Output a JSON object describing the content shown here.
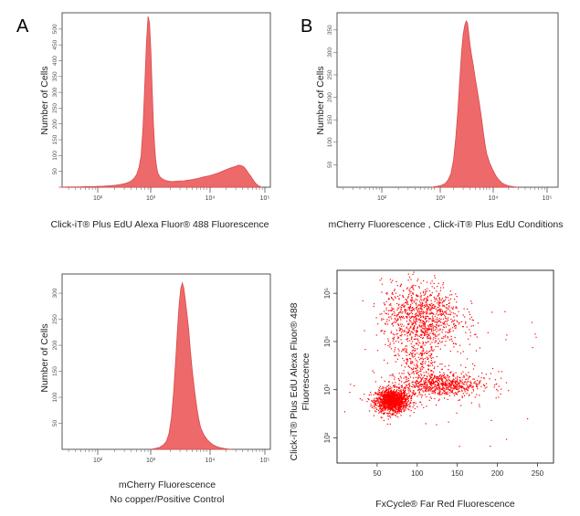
{
  "panel_labels": [
    "A",
    "B"
  ],
  "chart_data": [
    {
      "type": "area",
      "panel": "A",
      "xlabel": "Click-iT® Plus  EdU Alexa Fluor® 488 Fluorescence",
      "ylabel": "Number of Cells",
      "x_scale": "log",
      "xlim": [
        10,
        100000
      ],
      "x_ticks": [
        "10²",
        "10³",
        "10⁴",
        "10⁵"
      ],
      "y_ticks": [
        "50",
        "100",
        "150",
        "200",
        "250",
        "300",
        "350",
        "400",
        "450",
        "500"
      ],
      "ylim": [
        0,
        540
      ],
      "color": "#ee6a6a",
      "x": [
        20,
        30,
        40,
        50,
        60,
        70,
        80,
        90,
        100,
        120,
        140,
        170,
        200,
        250,
        300,
        350,
        400,
        450,
        500,
        550,
        600,
        650,
        700,
        750,
        800,
        850,
        900,
        950,
        1000,
        1050,
        1100,
        1150,
        1200,
        1300,
        1400,
        1500,
        1600,
        1800,
        2000,
        2300,
        2600,
        3000,
        3500,
        4000,
        5000,
        6000,
        7000,
        8000,
        10000,
        12000,
        15000,
        18000,
        22000,
        26000,
        30000,
        34000,
        38000,
        42000,
        46000,
        50000,
        55000,
        60000,
        65000,
        70000,
        75000,
        80000,
        85000,
        90000
      ],
      "y": [
        0,
        1,
        1,
        1,
        2,
        2,
        2,
        2,
        3,
        3,
        4,
        5,
        6,
        8,
        11,
        15,
        20,
        28,
        40,
        62,
        100,
        190,
        330,
        460,
        540,
        520,
        430,
        310,
        200,
        130,
        85,
        60,
        45,
        33,
        28,
        25,
        22,
        20,
        18,
        18,
        19,
        20,
        20,
        22,
        24,
        27,
        30,
        33,
        36,
        40,
        46,
        52,
        58,
        63,
        66,
        70,
        68,
        64,
        56,
        46,
        36,
        26,
        17,
        10,
        6,
        3,
        1,
        0
      ]
    },
    {
      "type": "area",
      "panel": "B",
      "xlabel": "mCherry Fluorescence , Click-iT® Plus  EdU Conditions",
      "ylabel": "Number of Cells",
      "x_scale": "log",
      "xlim": [
        10,
        100000
      ],
      "x_ticks": [
        "10²",
        "10³",
        "10⁴",
        "10⁵"
      ],
      "y_ticks": [
        "50",
        "100",
        "150",
        "200",
        "250",
        "300",
        "350"
      ],
      "ylim": [
        0,
        380
      ],
      "color": "#ee6a6a",
      "x": [
        800,
        1000,
        1200,
        1400,
        1600,
        1800,
        2000,
        2200,
        2400,
        2600,
        2800,
        3000,
        3200,
        3400,
        3600,
        3800,
        4000,
        4300,
        4600,
        5000,
        5500,
        6000,
        6500,
        7000,
        7500,
        8000,
        9000,
        10000,
        11000,
        12000,
        13000,
        14000,
        15000,
        17000,
        20000,
        25000,
        30000
      ],
      "y": [
        0,
        2,
        4,
        8,
        16,
        30,
        60,
        110,
        170,
        240,
        300,
        340,
        360,
        370,
        365,
        340,
        315,
        290,
        270,
        240,
        210,
        180,
        150,
        120,
        95,
        75,
        55,
        42,
        32,
        24,
        18,
        14,
        10,
        6,
        3,
        1,
        0
      ]
    },
    {
      "type": "area",
      "panel": "bottom-left",
      "xlabel": "mCherry Fluorescence",
      "xlabel_line2": "No copper/Positive Control",
      "ylabel": "Number of Cells",
      "x_scale": "log",
      "xlim": [
        10,
        100000
      ],
      "x_ticks": [
        "10²",
        "10³",
        "10⁴",
        "10⁵"
      ],
      "y_ticks": [
        "50",
        "100",
        "150",
        "200",
        "250",
        "300"
      ],
      "ylim": [
        0,
        330
      ],
      "color": "#ee6a6a",
      "x": [
        900,
        1100,
        1300,
        1500,
        1700,
        1900,
        2100,
        2300,
        2500,
        2700,
        2900,
        3100,
        3300,
        3500,
        3700,
        4000,
        4300,
        4600,
        5000,
        5500,
        6000,
        6500,
        7000,
        8000,
        9000,
        10000,
        11000,
        12000,
        14000,
        16000,
        18000,
        20000,
        25000
      ],
      "y": [
        0,
        2,
        4,
        8,
        15,
        30,
        60,
        110,
        170,
        230,
        280,
        310,
        320,
        310,
        290,
        260,
        230,
        190,
        150,
        110,
        80,
        58,
        42,
        28,
        20,
        15,
        11,
        8,
        5,
        3,
        2,
        1,
        0
      ]
    },
    {
      "type": "scatter",
      "panel": "bottom-right",
      "xlabel": "FxCycle® Far Red Fluorescence",
      "ylabel": "Click-iT® Plus EdU Alexa Fluor® 488",
      "ylabel_line2": "Fluorescence",
      "xlim": [
        0,
        270
      ],
      "y_scale": "log",
      "ylim": [
        30,
        300000
      ],
      "x_ticks": [
        50,
        100,
        150,
        200,
        250
      ],
      "y_ticks": [
        "10²",
        "10³",
        "10⁴",
        "10⁵"
      ],
      "color": "#ff0000",
      "populations": [
        {
          "label": "",
          "x_center": 68,
          "x_spread": 10,
          "y_center": 600,
          "y_spread_log10": 0.12,
          "points": 1400
        },
        {
          "label": "",
          "x_center": 130,
          "x_spread": 25,
          "y_center": 1300,
          "y_spread_log10": 0.12,
          "points": 650
        },
        {
          "label": "",
          "x_center": 105,
          "x_spread": 25,
          "y_center": 35000,
          "y_spread_log10": 0.35,
          "points": 900
        },
        {
          "label": "",
          "x_center": 100,
          "x_spread": 15,
          "y_center": 5000,
          "y_spread_log10": 0.45,
          "points": 350
        },
        {
          "label": "",
          "x_center": 130,
          "x_spread": 60,
          "y_center": 3000,
          "y_spread_log10": 0.9,
          "points": 150
        }
      ]
    }
  ]
}
